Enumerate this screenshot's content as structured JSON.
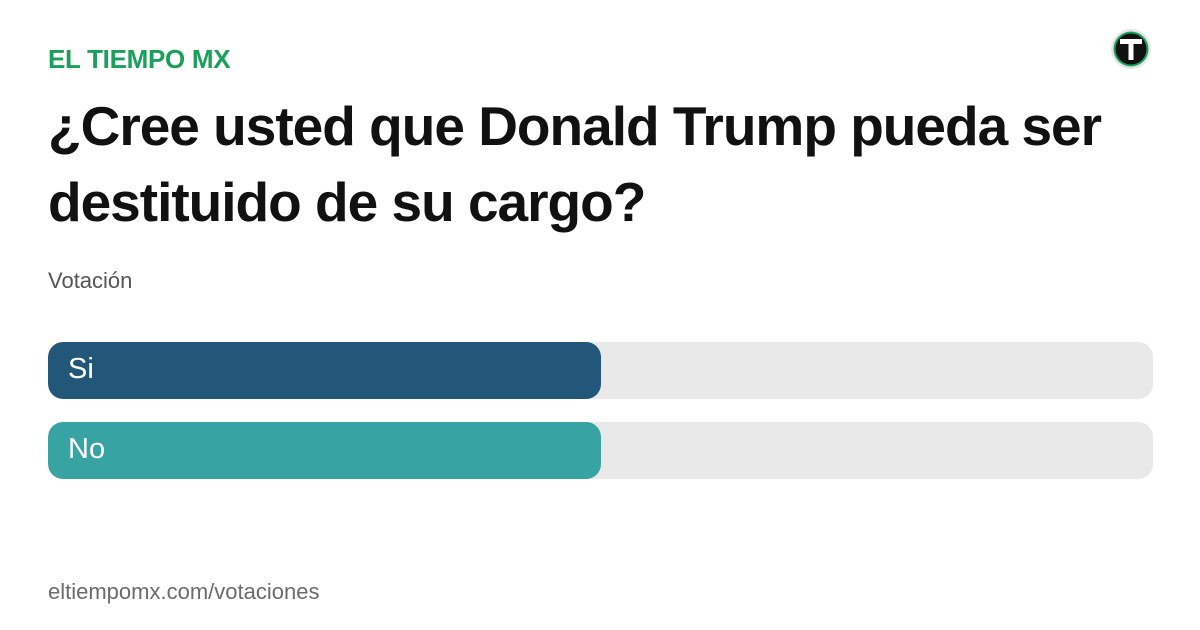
{
  "header": {
    "brand": "EL TIEMPO MX",
    "logo_icon": "el-tiempo-logo-icon"
  },
  "poll": {
    "question": "¿Cree usted que Donald Trump pueda ser destituido de su cargo?",
    "subtitle": "Votación",
    "options": [
      {
        "label": "Si",
        "share": 0.5,
        "color": "#225779"
      },
      {
        "label": "No",
        "share": 0.5,
        "color": "#37a3a3"
      }
    ]
  },
  "footer": {
    "url": "eltiempomx.com/votaciones"
  },
  "colors": {
    "brand": "#1aa05a",
    "track": "#e9e9e9"
  }
}
